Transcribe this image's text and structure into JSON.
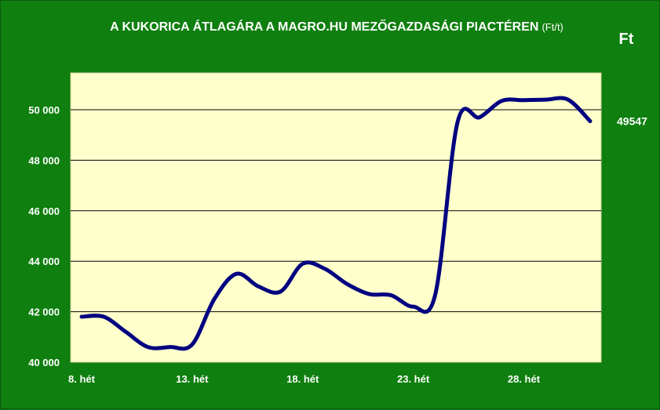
{
  "chart_data": {
    "type": "line",
    "title": "A KUKORICA ÁTLAGÁRA A MAGRO.HU MEZŐGAZDASÁGI PIACTÉREN",
    "title_unit": "(Ft/t)",
    "ylabel": "Ft",
    "xlabel": "",
    "x": [
      8,
      9,
      10,
      11,
      12,
      13,
      14,
      15,
      16,
      17,
      18,
      19,
      20,
      21,
      22,
      23,
      24,
      25,
      26,
      27,
      28,
      29,
      30,
      31
    ],
    "x_tick_values": [
      8,
      13,
      18,
      23,
      28
    ],
    "x_tick_labels": [
      "8. hét",
      "13. hét",
      "18. hét",
      "23. hét",
      "28. hét"
    ],
    "ylim": [
      40000,
      51000
    ],
    "y_tick_values": [
      40000,
      42000,
      44000,
      46000,
      48000,
      50000
    ],
    "y_tick_labels": [
      "40 000",
      "42 000",
      "44 000",
      "46 000",
      "48 000",
      "50 000"
    ],
    "series": [
      {
        "values": [
          41800,
          41800,
          41200,
          40600,
          40600,
          40700,
          42500,
          43500,
          43000,
          42800,
          43900,
          43700,
          43100,
          42700,
          42650,
          42200,
          42700,
          49500,
          49700,
          50350,
          50380,
          50400,
          50400,
          49547
        ],
        "color": "#000080"
      }
    ],
    "end_label": "49547",
    "grid": "horizontal",
    "plot_background": "#ffffcc",
    "background": "#0f7f0f"
  }
}
